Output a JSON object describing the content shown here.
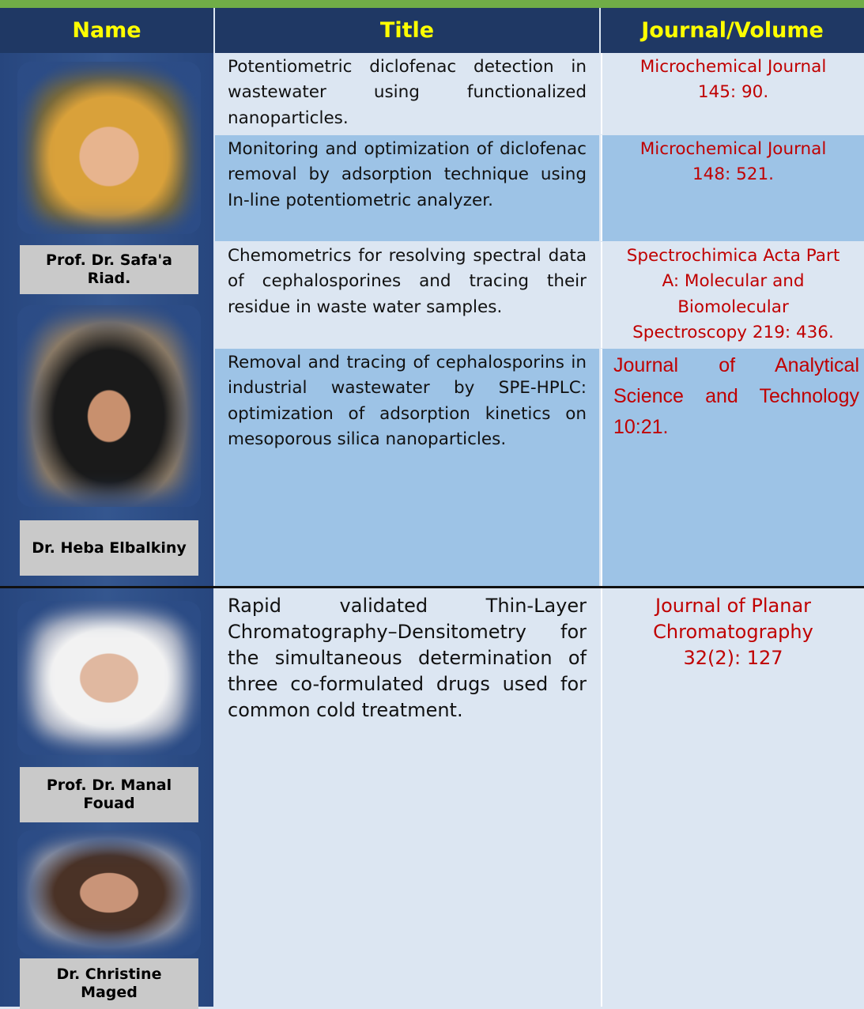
{
  "table": {
    "header": [
      "Name",
      "Title",
      "Journal/Volume"
    ],
    "groups": [
      {
        "authors": [
          "Prof. Dr. Safa'a Riad.",
          "Dr.  Heba Elbalkiny"
        ],
        "rows": [
          [
            "Potentiometric diclofenac detection in wastewater using functionalized nanoparticles.",
            "Microchemical Journal 145: 90."
          ],
          [
            "Monitoring and optimization of diclofenac removal by adsorption technique using In-line potentiometric analyzer.",
            "Microchemical Journal 148: 521."
          ],
          [
            "Chemometrics for resolving spectral data of cephalosporines and tracing their residue in waste water samples.",
            "Spectrochimica Acta Part A: Molecular and Biomolecular Spectroscopy 219: 436."
          ],
          [
            "Removal and tracing of cephalosporins in industrial wastewater by SPE-HPLC: optimization of adsorption kinetics on mesoporous silica nanoparticles.",
            "Journal of Analytical Science and Technology 10:21."
          ]
        ]
      },
      {
        "authors": [
          "Prof. Dr. Manal Fouad",
          "Dr. Christine Maged"
        ],
        "rows": [
          [
            "Rapid validated Thin-Layer Chromatography–Densitometry for the simultaneous determination of three co-formulated drugs used for common cold treatment.",
            "Journal of Planar Chromatography 32(2): 127"
          ]
        ]
      }
    ]
  }
}
